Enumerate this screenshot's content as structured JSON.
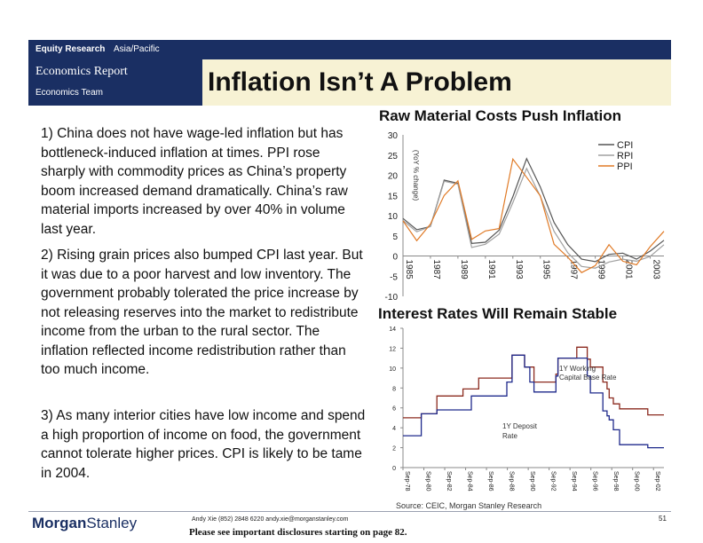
{
  "header": {
    "section": "Equity Research",
    "region": "Asia/Pacific",
    "report_type": "Economics Report",
    "team": "Economics Team",
    "title": "Inflation Isn’t A Problem"
  },
  "body": {
    "points": [
      "1) China does not have wage-led inflation but has bottleneck-induced inflation at times. PPI rose sharply with commodity prices as China’s property boom increased demand dramatically.  China’s raw material imports increased by over 40% in volume last year.",
      "2) Rising grain prices also bumped CPI last year.  But it was due to a poor harvest and low inventory.  The government probably tolerated the price increase by not releasing reserves into the market to redistribute income from the urban to the rural sector.  The inflation reflected income redistribution rather than too much income.",
      "3) As many interior cities have low income and spend a high proportion of income on food, the government cannot tolerate higher prices.  CPI is likely to be tame in 2004."
    ]
  },
  "footer": {
    "source": "Source: CEIC, Morgan Stanley Research",
    "logo_part1": "Morgan",
    "logo_part2": "Stanley",
    "contact": "Andy Xie (852) 2848 6220  andy.xie@morganstanley.com",
    "disclosure": "Please see important disclosures starting on page 82.",
    "page_number": "51"
  },
  "colors": {
    "brand_navy": "#1a2f63",
    "title_band": "#f7f2d4",
    "cpi": "#555555",
    "rpi": "#a0a0a0",
    "ppi": "#e07a26",
    "deposit_rate": "#1f2a8c",
    "working_capital_rate": "#8b2a1e"
  },
  "chart_data": [
    {
      "type": "line",
      "title": "Raw Material Costs Push Inflation",
      "ylabel": "(YoY % change)",
      "ylim": [
        -10,
        30
      ],
      "yticks": [
        -10,
        -5,
        0,
        5,
        10,
        15,
        20,
        25,
        30
      ],
      "xlim": [
        1985,
        2004
      ],
      "xticks": [
        "1985",
        "1987",
        "1989",
        "1991",
        "1993",
        "1995",
        "1997",
        "1999",
        "2001",
        "2003"
      ],
      "legend_position": "top-right",
      "series": [
        {
          "name": "CPI",
          "color": "#555555",
          "x": [
            1985,
            1986,
            1987,
            1988,
            1989,
            1990,
            1991,
            1992,
            1993,
            1994,
            1995,
            1996,
            1997,
            1998,
            1999,
            2000,
            2001,
            2002,
            2003,
            2004
          ],
          "values": [
            9.3,
            6.5,
            7.3,
            18.8,
            18.0,
            3.1,
            3.4,
            6.4,
            14.7,
            24.1,
            17.1,
            8.3,
            2.8,
            -0.8,
            -1.4,
            0.4,
            0.7,
            -0.8,
            1.2,
            3.9
          ]
        },
        {
          "name": "RPI",
          "color": "#a0a0a0",
          "x": [
            1985,
            1986,
            1987,
            1988,
            1989,
            1990,
            1991,
            1992,
            1993,
            1994,
            1995,
            1996,
            1997,
            1998,
            1999,
            2000,
            2001,
            2002,
            2003,
            2004
          ],
          "values": [
            8.8,
            6.0,
            7.3,
            18.5,
            17.8,
            2.1,
            2.9,
            5.4,
            13.2,
            21.7,
            14.8,
            6.1,
            0.8,
            -2.6,
            -3.0,
            -1.5,
            -0.8,
            -1.3,
            -0.1,
            2.8
          ]
        },
        {
          "name": "PPI",
          "color": "#e07a26",
          "x": [
            1985,
            1986,
            1987,
            1988,
            1989,
            1990,
            1991,
            1992,
            1993,
            1994,
            1995,
            1996,
            1997,
            1998,
            1999,
            2000,
            2001,
            2002,
            2003,
            2004
          ],
          "values": [
            8.7,
            3.8,
            7.9,
            15.0,
            18.6,
            4.1,
            6.2,
            6.8,
            24.0,
            19.5,
            14.9,
            2.9,
            -0.3,
            -4.1,
            -2.4,
            2.8,
            -1.3,
            -2.2,
            2.3,
            6.1
          ]
        }
      ]
    },
    {
      "type": "line",
      "title": "Interest Rates Will Remain Stable",
      "ylim": [
        0,
        14
      ],
      "yticks": [
        0,
        2,
        4,
        6,
        8,
        10,
        12,
        14
      ],
      "xlim": [
        1978.75,
        2003.75
      ],
      "xticks": [
        "Sep-78",
        "Sep-80",
        "Sep-82",
        "Sep-84",
        "Sep-86",
        "Sep-88",
        "Sep-90",
        "Sep-92",
        "Sep-94",
        "Sep-96",
        "Sep-98",
        "Sep-00",
        "Sep-02"
      ],
      "annotations": [
        "1Y Working Capital Base Rate",
        "1Y Deposit Rate"
      ],
      "series": [
        {
          "name": "1Y Working Capital Base Rate",
          "color": "#8b2a1e",
          "step": true,
          "x": [
            1978.75,
            1980.5,
            1982.0,
            1984.5,
            1985.3,
            1986.0,
            1988.7,
            1989.2,
            1989.9,
            1990.4,
            1991.3,
            1993.4,
            1993.6,
            1995.4,
            1996.4,
            1996.7,
            1997.9,
            1998.3,
            1998.5,
            1998.9,
            1999.5,
            2002.2,
            2003.75
          ],
          "values": [
            5.0,
            5.4,
            7.2,
            7.9,
            7.9,
            9.0,
            9.0,
            11.3,
            11.3,
            10.1,
            8.6,
            9.4,
            11.0,
            12.1,
            10.9,
            10.1,
            8.6,
            7.9,
            7.0,
            6.4,
            5.9,
            5.3,
            5.3
          ]
        },
        {
          "name": "1Y Deposit Rate",
          "color": "#1f2a8c",
          "step": true,
          "x": [
            1978.75,
            1980.5,
            1982.0,
            1985.3,
            1988.7,
            1989.2,
            1990.4,
            1990.9,
            1991.3,
            1993.4,
            1993.6,
            1996.4,
            1996.7,
            1997.9,
            1998.3,
            1998.5,
            1998.9,
            1999.5,
            2002.2,
            2003.75
          ],
          "values": [
            3.2,
            5.4,
            5.8,
            7.2,
            8.6,
            11.3,
            10.1,
            8.6,
            7.6,
            9.2,
            11.0,
            9.2,
            7.5,
            5.7,
            5.2,
            4.8,
            3.8,
            2.3,
            2.0,
            2.0
          ]
        }
      ]
    }
  ]
}
